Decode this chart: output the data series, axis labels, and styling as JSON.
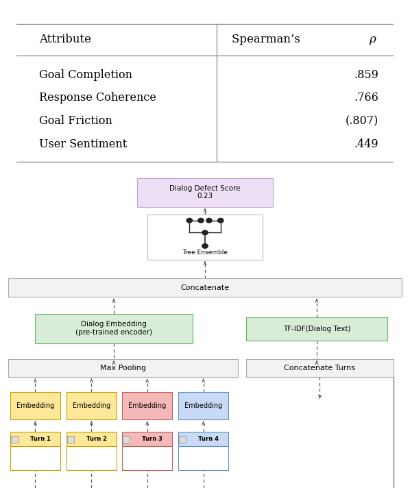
{
  "table_headers": [
    "Attribute",
    "Spearman’s ρ"
  ],
  "table_rows": [
    [
      "Goal Completion",
      ".859"
    ],
    [
      "Response Coherence",
      ".766"
    ],
    [
      "Goal Friction",
      "(.807)"
    ],
    [
      "User Sentiment",
      ".449"
    ]
  ],
  "nodes": {
    "dialog_defect": {
      "label": "Dialog Defect Score\n0.23",
      "fc": "#ede0f5",
      "ec": "#c0a0d8"
    },
    "tree_ensemble": {
      "label": "Tree Ensemble",
      "fc": "#ffffff",
      "ec": "#bbbbbb"
    },
    "concatenate": {
      "label": "Concatenate",
      "fc": "#f2f2f2",
      "ec": "#aaaaaa"
    },
    "dialog_embed": {
      "label": "Dialog Embedding\n(pre-trained encoder)",
      "fc": "#d8ecd8",
      "ec": "#6ab06a"
    },
    "tfidf": {
      "label": "TF-IDF(Dialog Text)",
      "fc": "#d8ecd8",
      "ec": "#6ab06a"
    },
    "max_pool": {
      "label": "Max Pooling",
      "fc": "#f2f2f2",
      "ec": "#aaaaaa"
    },
    "concat_turns": {
      "label": "Concatenate Turns",
      "fc": "#f2f2f2",
      "ec": "#aaaaaa"
    }
  },
  "embed_colors": [
    {
      "fc": "#fde89a",
      "ec": "#c8a000"
    },
    {
      "fc": "#fde89a",
      "ec": "#c8a000"
    },
    {
      "fc": "#f5b8b8",
      "ec": "#c06060"
    },
    {
      "fc": "#c8daf5",
      "ec": "#6090c8"
    }
  ],
  "turn_colors": [
    {
      "fc": "#fde89a",
      "ec": "#c8a000",
      "label": "Turn 1"
    },
    {
      "fc": "#fde89a",
      "ec": "#c8a000",
      "label": "Turn 2"
    },
    {
      "fc": "#f5b8b8",
      "ec": "#c06060",
      "label": "Turn 3"
    },
    {
      "fc": "#c8daf5",
      "ec": "#6090c8",
      "label": "Turn 4"
    }
  ],
  "arrow_color": "#555555",
  "table_line_color": "#888888"
}
